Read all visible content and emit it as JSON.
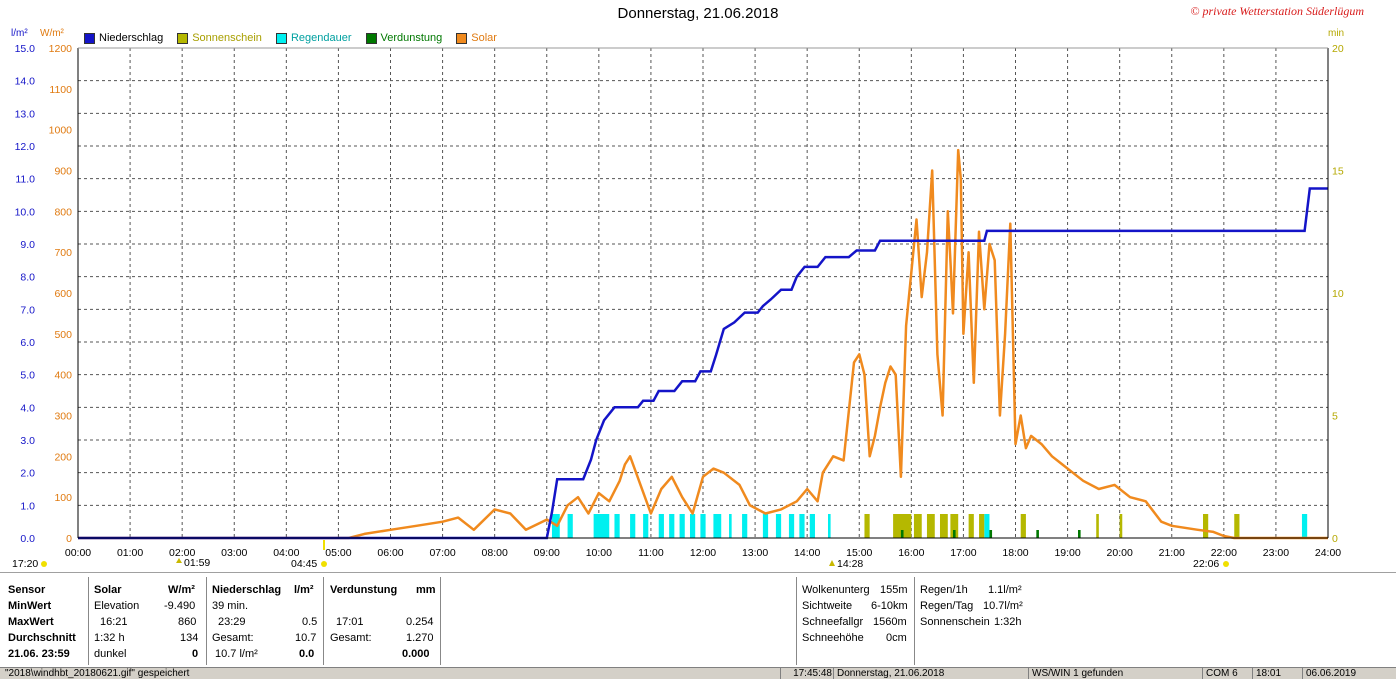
{
  "title": "Donnerstag, 21.06.2018",
  "copyright": "© private Wetterstation Süderlügum",
  "units": {
    "left1": "l/m²",
    "left2": "W/m²",
    "right": "min"
  },
  "legend": [
    {
      "label": "Niederschlag",
      "color": "#1414c8"
    },
    {
      "label": "Sonnenschein",
      "color": "#b5b800"
    },
    {
      "label": "Regendauer",
      "color": "#00f0f0"
    },
    {
      "label": "Verdunstung",
      "color": "#007800"
    },
    {
      "label": "Solar",
      "color": "#f08a1e"
    }
  ],
  "sun_markers": {
    "left_time": "17:20",
    "sunrise_tick": "01:59",
    "sunrise": "04:45",
    "noon": "14:28",
    "sunset": "22:06"
  },
  "chart_data": {
    "type": "line",
    "x_axis": {
      "ticks": [
        "00:00",
        "01:00",
        "02:00",
        "03:00",
        "04:00",
        "05:00",
        "06:00",
        "07:00",
        "08:00",
        "09:00",
        "10:00",
        "11:00",
        "12:00",
        "13:00",
        "14:00",
        "15:00",
        "16:00",
        "17:00",
        "18:00",
        "19:00",
        "20:00",
        "21:00",
        "22:00",
        "23:00",
        "24:00"
      ],
      "range_hours": [
        0,
        24
      ]
    },
    "y_left_precip": {
      "ticks": [
        "0.0",
        "1.0",
        "2.0",
        "3.0",
        "4.0",
        "5.0",
        "6.0",
        "7.0",
        "8.0",
        "9.0",
        "10.0",
        "11.0",
        "12.0",
        "13.0",
        "14.0",
        "15.0"
      ],
      "range": [
        0,
        15
      ]
    },
    "y_left_solar": {
      "ticks": [
        "0",
        "100",
        "200",
        "300",
        "400",
        "500",
        "600",
        "700",
        "800",
        "900",
        "1000",
        "1100",
        "1200"
      ],
      "range": [
        0,
        1200
      ]
    },
    "y_right_min": {
      "ticks": [
        "0",
        "5",
        "10",
        "15",
        "20"
      ],
      "range": [
        0,
        20
      ]
    },
    "grid": true,
    "series": [
      {
        "name": "Niederschlag",
        "unit": "l/m²",
        "color": "#1414c8",
        "points": [
          [
            0,
            0
          ],
          [
            9.0,
            0
          ],
          [
            9.1,
            0.8
          ],
          [
            9.2,
            1.8
          ],
          [
            9.7,
            1.8
          ],
          [
            9.85,
            2.4
          ],
          [
            9.95,
            3.0
          ],
          [
            10.1,
            3.6
          ],
          [
            10.3,
            4.0
          ],
          [
            10.75,
            4.0
          ],
          [
            10.85,
            4.2
          ],
          [
            11.05,
            4.2
          ],
          [
            11.15,
            4.5
          ],
          [
            11.45,
            4.5
          ],
          [
            11.6,
            4.8
          ],
          [
            11.85,
            4.8
          ],
          [
            11.95,
            5.1
          ],
          [
            12.15,
            5.1
          ],
          [
            12.25,
            5.6
          ],
          [
            12.4,
            6.4
          ],
          [
            12.6,
            6.6
          ],
          [
            12.8,
            6.9
          ],
          [
            13.05,
            6.9
          ],
          [
            13.15,
            7.1
          ],
          [
            13.3,
            7.3
          ],
          [
            13.5,
            7.6
          ],
          [
            13.7,
            7.6
          ],
          [
            13.8,
            8.0
          ],
          [
            13.95,
            8.3
          ],
          [
            14.2,
            8.3
          ],
          [
            14.35,
            8.6
          ],
          [
            14.8,
            8.6
          ],
          [
            14.95,
            8.8
          ],
          [
            15.3,
            8.8
          ],
          [
            15.4,
            9.1
          ],
          [
            17.4,
            9.1
          ],
          [
            17.45,
            9.4
          ],
          [
            23.55,
            9.4
          ],
          [
            23.65,
            10.7
          ],
          [
            24,
            10.7
          ]
        ]
      },
      {
        "name": "Solar",
        "unit": "W/m²",
        "color": "#f08a1e",
        "points": [
          [
            0,
            0
          ],
          [
            5.2,
            0
          ],
          [
            5.5,
            10
          ],
          [
            6.0,
            20
          ],
          [
            6.5,
            30
          ],
          [
            7.0,
            40
          ],
          [
            7.3,
            50
          ],
          [
            7.6,
            20
          ],
          [
            8.0,
            70
          ],
          [
            8.3,
            60
          ],
          [
            8.6,
            20
          ],
          [
            9.0,
            45
          ],
          [
            9.2,
            30
          ],
          [
            9.4,
            80
          ],
          [
            9.6,
            100
          ],
          [
            9.8,
            60
          ],
          [
            10.0,
            110
          ],
          [
            10.2,
            90
          ],
          [
            10.4,
            140
          ],
          [
            10.5,
            180
          ],
          [
            10.6,
            200
          ],
          [
            10.8,
            130
          ],
          [
            11.0,
            60
          ],
          [
            11.2,
            120
          ],
          [
            11.4,
            150
          ],
          [
            11.6,
            100
          ],
          [
            11.8,
            60
          ],
          [
            12.0,
            150
          ],
          [
            12.2,
            170
          ],
          [
            12.4,
            160
          ],
          [
            12.7,
            130
          ],
          [
            12.9,
            80
          ],
          [
            13.2,
            60
          ],
          [
            13.5,
            70
          ],
          [
            13.8,
            90
          ],
          [
            14.0,
            120
          ],
          [
            14.2,
            90
          ],
          [
            14.3,
            160
          ],
          [
            14.5,
            200
          ],
          [
            14.7,
            190
          ],
          [
            14.9,
            430
          ],
          [
            15.0,
            450
          ],
          [
            15.1,
            400
          ],
          [
            15.2,
            200
          ],
          [
            15.3,
            250
          ],
          [
            15.4,
            320
          ],
          [
            15.5,
            380
          ],
          [
            15.6,
            420
          ],
          [
            15.7,
            400
          ],
          [
            15.8,
            150
          ],
          [
            15.9,
            520
          ],
          [
            16.0,
            650
          ],
          [
            16.1,
            780
          ],
          [
            16.2,
            590
          ],
          [
            16.3,
            700
          ],
          [
            16.4,
            900
          ],
          [
            16.5,
            450
          ],
          [
            16.6,
            300
          ],
          [
            16.7,
            800
          ],
          [
            16.75,
            680
          ],
          [
            16.8,
            550
          ],
          [
            16.9,
            950
          ],
          [
            16.95,
            880
          ],
          [
            17.0,
            500
          ],
          [
            17.1,
            700
          ],
          [
            17.2,
            380
          ],
          [
            17.3,
            750
          ],
          [
            17.4,
            560
          ],
          [
            17.5,
            720
          ],
          [
            17.6,
            680
          ],
          [
            17.7,
            300
          ],
          [
            17.8,
            500
          ],
          [
            17.9,
            770
          ],
          [
            18.0,
            230
          ],
          [
            18.1,
            300
          ],
          [
            18.2,
            220
          ],
          [
            18.3,
            250
          ],
          [
            18.5,
            230
          ],
          [
            18.7,
            200
          ],
          [
            18.9,
            180
          ],
          [
            19.1,
            160
          ],
          [
            19.3,
            140
          ],
          [
            19.6,
            120
          ],
          [
            19.9,
            130
          ],
          [
            20.2,
            100
          ],
          [
            20.5,
            90
          ],
          [
            20.8,
            40
          ],
          [
            21.0,
            30
          ],
          [
            21.5,
            20
          ],
          [
            21.8,
            15
          ],
          [
            22.0,
            5
          ],
          [
            22.2,
            0
          ],
          [
            24,
            0
          ]
        ]
      }
    ],
    "bars": {
      "Regendauer": {
        "color": "#00f0f0",
        "unit": "min",
        "max_value": 1,
        "spans": [
          [
            9.1,
            9.25
          ],
          [
            9.4,
            9.5
          ],
          [
            9.9,
            10.2
          ],
          [
            10.3,
            10.4
          ],
          [
            10.6,
            10.7
          ],
          [
            10.85,
            10.95
          ],
          [
            11.15,
            11.25
          ],
          [
            11.35,
            11.45
          ],
          [
            11.55,
            11.65
          ],
          [
            11.75,
            11.85
          ],
          [
            11.95,
            12.05
          ],
          [
            12.2,
            12.35
          ],
          [
            12.5,
            12.55
          ],
          [
            12.75,
            12.85
          ],
          [
            13.15,
            13.25
          ],
          [
            13.4,
            13.5
          ],
          [
            13.65,
            13.75
          ],
          [
            13.85,
            13.95
          ],
          [
            14.05,
            14.15
          ],
          [
            14.4,
            14.45
          ],
          [
            17.4,
            17.5
          ],
          [
            23.5,
            23.6
          ]
        ]
      },
      "Sonnenschein": {
        "color": "#b5b800",
        "unit": "min",
        "max_value": 1,
        "spans": [
          [
            15.1,
            15.2
          ],
          [
            15.65,
            16.0
          ],
          [
            16.05,
            16.2
          ],
          [
            16.3,
            16.45
          ],
          [
            16.55,
            16.7
          ],
          [
            16.75,
            16.9
          ],
          [
            17.1,
            17.2
          ],
          [
            17.3,
            17.4
          ],
          [
            18.1,
            18.2
          ],
          [
            19.55,
            19.6
          ],
          [
            20.0,
            20.05
          ],
          [
            21.6,
            21.7
          ],
          [
            22.2,
            22.3
          ]
        ]
      },
      "Verdunstung": {
        "color": "#007800",
        "unit": "mm",
        "max_value": 0.254,
        "spans": [
          [
            15.8,
            15.85
          ],
          [
            16.8,
            16.85
          ],
          [
            17.5,
            17.55
          ],
          [
            18.4,
            18.45
          ],
          [
            19.2,
            19.25
          ]
        ]
      }
    }
  },
  "panel": {
    "sensor": {
      "h": "Sensor",
      "r1": "MinWert",
      "r2": "MaxWert",
      "r3": "Durchschnitt",
      "r4": "21.06. 23:59"
    },
    "solar": {
      "h": "Solar",
      "unit": "W/m²",
      "r1a": "Elevation",
      "r1b": "-9.490",
      "r2a": "16:21",
      "r2b": "860",
      "r3a": "1:32 h",
      "r3b": "134",
      "r4a": "dunkel",
      "r4b": "0"
    },
    "niederschlag": {
      "h": "Niederschlag",
      "unit": "l/m²",
      "r1a": "39 min.",
      "r2a": "23:29",
      "r2b": "0.5",
      "r3a": "Gesamt:",
      "r3b": "10.7",
      "r4a": "10.7 l/m²",
      "r4b": "0.0"
    },
    "verdunstung": {
      "h": "Verdunstung",
      "unit": "mm",
      "r2a": "17:01",
      "r2b": "0.254",
      "r3a": "Gesamt:",
      "r3b": "1.270",
      "r4b": "0.000"
    },
    "weather": [
      {
        "label": "Wolkenunterg",
        "value": "155m"
      },
      {
        "label": "Sichtweite",
        "value": "6-10km"
      },
      {
        "label": "Schneefallgr",
        "value": "1560m"
      },
      {
        "label": "Schneehöhe",
        "value": "0cm"
      }
    ],
    "rain": [
      {
        "label": "Regen/1h",
        "value": "1.1l/m²"
      },
      {
        "label": "Regen/Tag",
        "value": "10.7l/m²"
      },
      {
        "label": "Sonnenschein",
        "value": "1:32h"
      }
    ]
  },
  "statusbar": {
    "file": "\"2018\\windhbt_20180621.gif\" gespeichert",
    "time": "17:45:48",
    "date": "Donnerstag, 21.06.2018",
    "ws": "WS/WIN 1 gefunden",
    "com": "COM 6",
    "t2": "18:01",
    "d2": "06.06.2019"
  }
}
